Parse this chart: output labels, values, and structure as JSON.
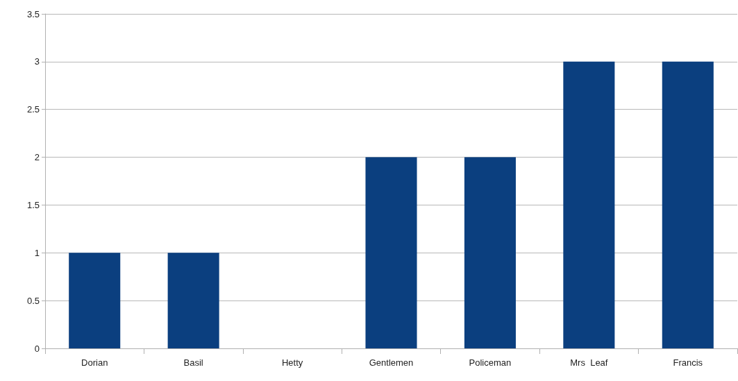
{
  "chart_data": {
    "type": "bar",
    "categories": [
      "Dorian",
      "Basil",
      "Hetty",
      "Gentlemen",
      "Policeman",
      "Mrs  Leaf",
      "Francis"
    ],
    "values": [
      1,
      1,
      0,
      2,
      2,
      3,
      3
    ],
    "color": "#0b3f7f",
    "ylim": [
      0,
      3.5
    ],
    "yticks": [
      0,
      0.5,
      1,
      1.5,
      2,
      2.5,
      3,
      3.5
    ],
    "grid": "y"
  }
}
